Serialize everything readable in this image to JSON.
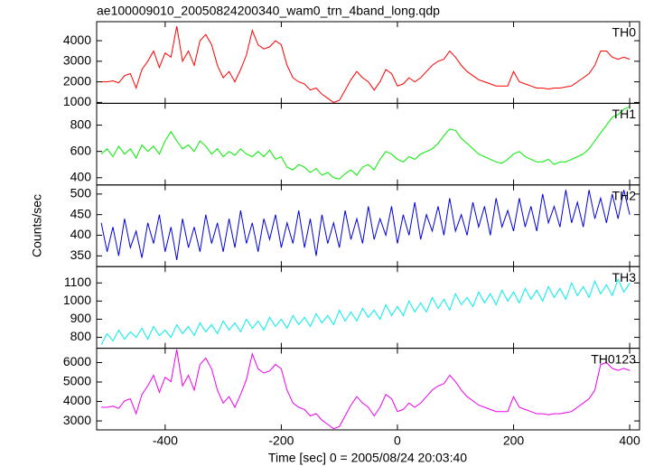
{
  "chart_data": [
    {
      "type": "line",
      "title": "ae100009010_20050824200340_wam0_trn_4band_long.qdp",
      "x": [
        -510,
        -500,
        -490,
        -480,
        -470,
        -460,
        -450,
        -440,
        -430,
        -420,
        -410,
        -400,
        -390,
        -380,
        -370,
        -360,
        -350,
        -340,
        -330,
        -320,
        -310,
        -300,
        -290,
        -280,
        -270,
        -260,
        -250,
        -240,
        -230,
        -220,
        -210,
        -200,
        -190,
        -180,
        -170,
        -160,
        -150,
        -140,
        -130,
        -120,
        -110,
        -100,
        -90,
        -80,
        -70,
        -60,
        -50,
        -40,
        -30,
        -20,
        -10,
        0,
        10,
        20,
        30,
        40,
        50,
        60,
        70,
        80,
        90,
        100,
        110,
        120,
        130,
        140,
        150,
        160,
        170,
        180,
        190,
        200,
        210,
        220,
        230,
        240,
        250,
        260,
        270,
        280,
        290,
        300,
        310,
        320,
        330,
        340,
        350,
        360,
        370,
        380,
        390,
        400
      ],
      "series": [
        {
          "name": "TH0",
          "color": "#ff0000",
          "values": [
            2000,
            2000,
            2050,
            1950,
            2300,
            2400,
            1700,
            2600,
            3000,
            3500,
            2700,
            3400,
            3200,
            4700,
            3000,
            3500,
            2800,
            4000,
            4300,
            3800,
            2800,
            2200,
            2500,
            2000,
            2600,
            3300,
            4500,
            3800,
            3600,
            3700,
            4000,
            3800,
            2800,
            2200,
            2000,
            1900,
            1600,
            1700,
            1400,
            1200,
            1000,
            1100,
            1600,
            2100,
            2500,
            2200,
            2000,
            1600,
            2000,
            2600,
            2400,
            1800,
            1900,
            2200,
            2000,
            2200,
            2500,
            2800,
            3000,
            3100,
            3500,
            3200,
            2800,
            2500,
            2300,
            2100,
            2000,
            1900,
            1800,
            1800,
            1800,
            2500,
            2000,
            1900,
            1800,
            1700,
            1700,
            1650,
            1700,
            1700,
            1750,
            1800,
            2000,
            2200,
            2400,
            2800,
            3500,
            3500,
            3200,
            3100,
            3200,
            3100
          ]
        }
      ],
      "xlim": [
        -518,
        417
      ],
      "xticks": [
        -400,
        -200,
        0,
        200,
        400
      ],
      "ylim": [
        956,
        4925
      ],
      "yticks": [
        1000,
        2000,
        3000,
        4000
      ]
    },
    {
      "type": "line",
      "x": [
        -510,
        -500,
        -490,
        -480,
        -470,
        -460,
        -450,
        -440,
        -430,
        -420,
        -410,
        -400,
        -390,
        -380,
        -370,
        -360,
        -350,
        -340,
        -330,
        -320,
        -310,
        -300,
        -290,
        -280,
        -270,
        -260,
        -250,
        -240,
        -230,
        -220,
        -210,
        -200,
        -190,
        -180,
        -170,
        -160,
        -150,
        -140,
        -130,
        -120,
        -110,
        -100,
        -90,
        -80,
        -70,
        -60,
        -50,
        -40,
        -30,
        -20,
        -10,
        0,
        10,
        20,
        30,
        40,
        50,
        60,
        70,
        80,
        90,
        100,
        110,
        120,
        130,
        140,
        150,
        160,
        170,
        180,
        190,
        200,
        210,
        220,
        230,
        240,
        250,
        260,
        270,
        280,
        290,
        300,
        310,
        320,
        330,
        340,
        350,
        360,
        370,
        380,
        390,
        400
      ],
      "series": [
        {
          "name": "TH1",
          "color": "#00ee00",
          "values": [
            580,
            620,
            560,
            640,
            580,
            620,
            550,
            650,
            600,
            640,
            580,
            680,
            750,
            680,
            620,
            650,
            600,
            680,
            640,
            580,
            620,
            560,
            600,
            570,
            620,
            580,
            560,
            600,
            560,
            610,
            540,
            560,
            480,
            460,
            500,
            480,
            440,
            470,
            420,
            440,
            400,
            390,
            430,
            460,
            420,
            480,
            500,
            460,
            540,
            600,
            580,
            540,
            520,
            560,
            540,
            580,
            600,
            620,
            660,
            720,
            770,
            760,
            700,
            660,
            620,
            580,
            560,
            540,
            520,
            510,
            540,
            580,
            600,
            560,
            540,
            520,
            520,
            540,
            500,
            520,
            520,
            540,
            560,
            580,
            620,
            680,
            740,
            800,
            860,
            880,
            920,
            940
          ]
        }
      ],
      "xlim": [
        -518,
        417
      ],
      "xticks": [
        -400,
        -200,
        0,
        200,
        400
      ],
      "ylim": [
        345,
        966
      ],
      "yticks": [
        400,
        600,
        800
      ]
    },
    {
      "type": "line",
      "ylabel": "Counts/sec",
      "x": [
        -510,
        -500,
        -490,
        -480,
        -470,
        -460,
        -450,
        -440,
        -430,
        -420,
        -410,
        -400,
        -390,
        -380,
        -370,
        -360,
        -350,
        -340,
        -330,
        -320,
        -310,
        -300,
        -290,
        -280,
        -270,
        -260,
        -250,
        -240,
        -230,
        -220,
        -210,
        -200,
        -190,
        -180,
        -170,
        -160,
        -150,
        -140,
        -130,
        -120,
        -110,
        -100,
        -90,
        -80,
        -70,
        -60,
        -50,
        -40,
        -30,
        -20,
        -10,
        0,
        10,
        20,
        30,
        40,
        50,
        60,
        70,
        80,
        90,
        100,
        110,
        120,
        130,
        140,
        150,
        160,
        170,
        180,
        190,
        200,
        210,
        220,
        230,
        240,
        250,
        260,
        270,
        280,
        290,
        300,
        310,
        320,
        330,
        340,
        350,
        360,
        370,
        380,
        390,
        400
      ],
      "series": [
        {
          "name": "TH2",
          "color": "#0000dd",
          "values": [
            430,
            360,
            420,
            350,
            440,
            370,
            410,
            345,
            430,
            380,
            450,
            360,
            420,
            340,
            440,
            370,
            420,
            360,
            450,
            380,
            430,
            360,
            440,
            370,
            460,
            380,
            430,
            360,
            440,
            390,
            450,
            370,
            430,
            380,
            460,
            370,
            440,
            350,
            450,
            380,
            430,
            370,
            460,
            390,
            440,
            380,
            470,
            390,
            440,
            400,
            470,
            380,
            450,
            400,
            480,
            390,
            450,
            410,
            470,
            400,
            490,
            410,
            450,
            400,
            480,
            420,
            470,
            400,
            490,
            420,
            460,
            410,
            490,
            420,
            470,
            410,
            500,
            430,
            470,
            420,
            510,
            430,
            480,
            420,
            510,
            440,
            490,
            430,
            500,
            440,
            510,
            450
          ]
        }
      ],
      "xlim": [
        -518,
        417
      ],
      "xticks": [
        -400,
        -200,
        0,
        200,
        400
      ],
      "ylim": [
        324,
        522
      ],
      "yticks": [
        350,
        400,
        450,
        500
      ]
    },
    {
      "type": "line",
      "x": [
        -510,
        -500,
        -490,
        -480,
        -470,
        -460,
        -450,
        -440,
        -430,
        -420,
        -410,
        -400,
        -390,
        -380,
        -370,
        -360,
        -350,
        -340,
        -330,
        -320,
        -310,
        -300,
        -290,
        -280,
        -270,
        -260,
        -250,
        -240,
        -230,
        -220,
        -210,
        -200,
        -190,
        -180,
        -170,
        -160,
        -150,
        -140,
        -130,
        -120,
        -110,
        -100,
        -90,
        -80,
        -70,
        -60,
        -50,
        -40,
        -30,
        -20,
        -10,
        0,
        10,
        20,
        30,
        40,
        50,
        60,
        70,
        80,
        90,
        100,
        110,
        120,
        130,
        140,
        150,
        160,
        170,
        180,
        190,
        200,
        210,
        220,
        230,
        240,
        250,
        260,
        270,
        280,
        290,
        300,
        310,
        320,
        330,
        340,
        350,
        360,
        370,
        380,
        390,
        400
      ],
      "series": [
        {
          "name": "TH3",
          "color": "#00eeee",
          "values": [
            760,
            820,
            780,
            840,
            790,
            830,
            800,
            850,
            790,
            860,
            810,
            840,
            800,
            870,
            820,
            860,
            810,
            880,
            830,
            870,
            820,
            890,
            840,
            880,
            830,
            900,
            850,
            890,
            840,
            910,
            860,
            900,
            850,
            920,
            870,
            910,
            860,
            930,
            880,
            920,
            870,
            950,
            890,
            940,
            890,
            960,
            910,
            950,
            900,
            980,
            920,
            970,
            920,
            1000,
            940,
            990,
            940,
            1020,
            960,
            1010,
            950,
            1040,
            980,
            1020,
            970,
            1050,
            990,
            1040,
            980,
            1060,
            1000,
            1050,
            990,
            1070,
            1010,
            1060,
            1000,
            1080,
            1020,
            1070,
            1010,
            1100,
            1030,
            1080,
            1020,
            1110,
            1040,
            1090,
            1030,
            1120,
            1050,
            1100
          ]
        }
      ],
      "xlim": [
        -518,
        417
      ],
      "xticks": [
        -400,
        -200,
        0,
        200,
        400
      ],
      "ylim": [
        740,
        1190
      ],
      "yticks": [
        800,
        900,
        1000,
        1100
      ]
    },
    {
      "type": "line",
      "xlabel": "Time [sec] 0 = 2005/08/24 20:03:40",
      "x": [
        -510,
        -500,
        -490,
        -480,
        -470,
        -460,
        -450,
        -440,
        -430,
        -420,
        -410,
        -400,
        -390,
        -380,
        -370,
        -360,
        -350,
        -340,
        -330,
        -320,
        -310,
        -300,
        -290,
        -280,
        -270,
        -260,
        -250,
        -240,
        -230,
        -220,
        -210,
        -200,
        -190,
        -180,
        -170,
        -160,
        -150,
        -140,
        -130,
        -120,
        -110,
        -100,
        -90,
        -80,
        -70,
        -60,
        -50,
        -40,
        -30,
        -20,
        -10,
        0,
        10,
        20,
        30,
        40,
        50,
        60,
        70,
        80,
        90,
        100,
        110,
        120,
        130,
        140,
        150,
        160,
        170,
        180,
        190,
        200,
        210,
        220,
        230,
        240,
        250,
        260,
        270,
        280,
        290,
        300,
        310,
        320,
        330,
        340,
        350,
        360,
        370,
        380,
        390,
        400
      ],
      "series": [
        {
          "name": "TH0123",
          "color": "#ee00ee",
          "values": [
            3700,
            3700,
            3755,
            3645,
            4030,
            4140,
            3370,
            4360,
            4800,
            5350,
            4470,
            5240,
            5020,
            6670,
            4800,
            5350,
            4580,
            5900,
            6230,
            5680,
            4580,
            3920,
            4250,
            3700,
            4360,
            5130,
            6450,
            5680,
            5460,
            5570,
            5900,
            5680,
            4580,
            3920,
            3700,
            3590,
            3260,
            3370,
            3040,
            2820,
            2600,
            2710,
            3260,
            3810,
            4250,
            3920,
            3700,
            3260,
            3700,
            4360,
            4140,
            3480,
            3590,
            3920,
            3700,
            3920,
            4250,
            4580,
            4800,
            4910,
            5350,
            5020,
            4580,
            4250,
            4030,
            3810,
            3700,
            3590,
            3480,
            3480,
            3480,
            4250,
            3700,
            3590,
            3480,
            3370,
            3370,
            3315,
            3370,
            3370,
            3425,
            3480,
            3700,
            3920,
            4140,
            4580,
            5900,
            6000,
            5700,
            5600,
            5700,
            5600
          ]
        }
      ],
      "xlim": [
        -518,
        417
      ],
      "xticks": [
        -400,
        -200,
        0,
        200,
        400
      ],
      "ylim": [
        2539,
        6737
      ],
      "yticks": [
        3000,
        4000,
        5000,
        6000
      ]
    }
  ]
}
